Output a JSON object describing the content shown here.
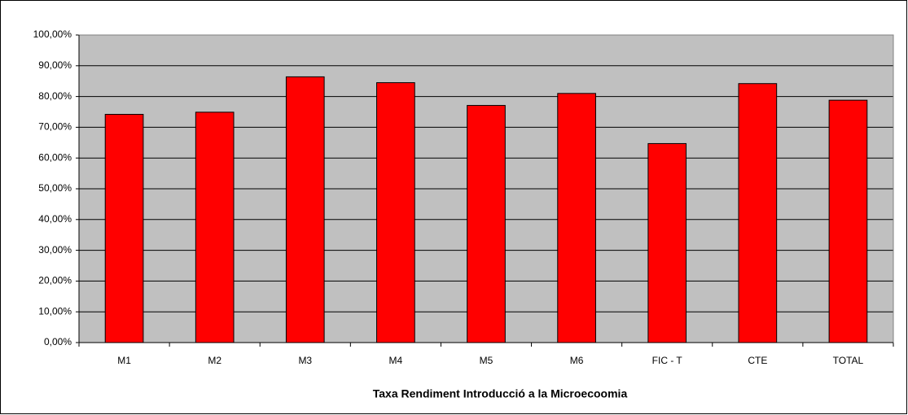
{
  "chart_data": {
    "type": "bar",
    "x_label": "Taxa Rendiment Introducció a la Microecoomia",
    "categories": [
      "M1",
      "M2",
      "M3",
      "M4",
      "M5",
      "M6",
      "FIC - T",
      "CTE",
      "TOTAL"
    ],
    "values": [
      74.2,
      74.9,
      86.4,
      84.5,
      77.1,
      81.0,
      64.7,
      84.2,
      78.8
    ],
    "color": "#ff0000",
    "ylim": [
      0,
      100
    ],
    "yticks": [
      {
        "value": 0,
        "label": "0,00%"
      },
      {
        "value": 10,
        "label": "10,00%"
      },
      {
        "value": 20,
        "label": "20,00%"
      },
      {
        "value": 30,
        "label": "30,00%"
      },
      {
        "value": 40,
        "label": "40,00%"
      },
      {
        "value": 50,
        "label": "50,00%"
      },
      {
        "value": 60,
        "label": "60,00%"
      },
      {
        "value": 70,
        "label": "70,00%"
      },
      {
        "value": 80,
        "label": "80,00%"
      },
      {
        "value": 90,
        "label": "90,00%"
      },
      {
        "value": 100,
        "label": "100,00%"
      }
    ],
    "grid": true
  }
}
